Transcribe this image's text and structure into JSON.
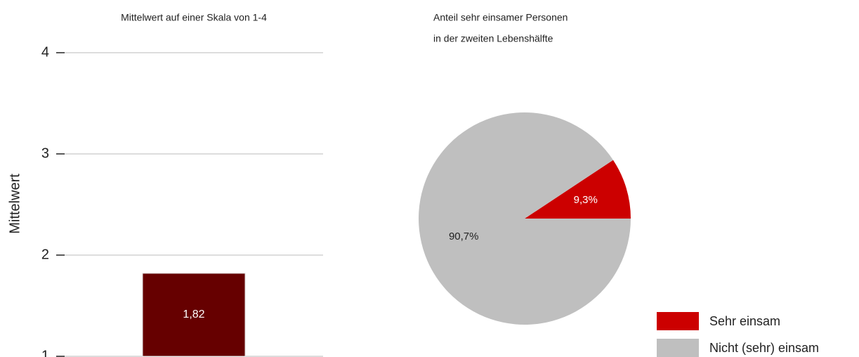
{
  "chart_data": [
    {
      "type": "bar",
      "title": "Mittelwert auf einer Skala von 1-4",
      "y_label": "Mittelwert",
      "categories": [
        null
      ],
      "values": [
        1.82
      ],
      "value_labels": [
        "1,82"
      ],
      "color": "#660000",
      "ylim": [
        1,
        4
      ],
      "yticks": [
        1,
        2,
        3,
        4
      ],
      "grid": true
    },
    {
      "type": "pie",
      "title": [
        "Anteil sehr einsamer Personen",
        "in der zweiten Lebenshälfte"
      ],
      "categories": [
        "Sehr einsam",
        "Nicht (sehr) einsam"
      ],
      "values": [
        9.3,
        90.7
      ],
      "value_labels": [
        "9,3%",
        "90,7%"
      ],
      "colors": [
        "#cc0000",
        "#bfbfbf"
      ],
      "legend": "bottom-right"
    }
  ]
}
